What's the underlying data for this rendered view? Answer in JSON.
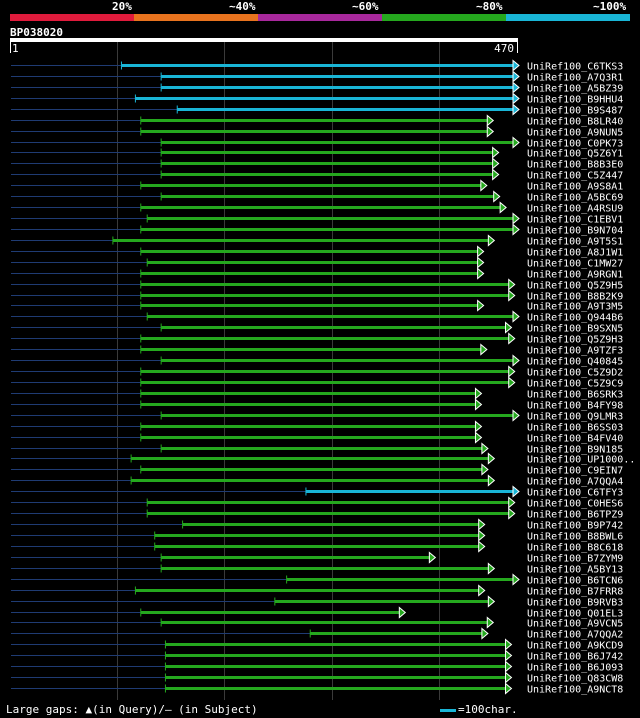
{
  "legend": {
    "labels": [
      "20%",
      "~40%",
      "~60%",
      "~80%",
      "~100%"
    ],
    "colors": [
      "#e01b3c",
      "#e8731e",
      "#a8289c",
      "#25a81e",
      "#19b5d6"
    ]
  },
  "query_id": "BP038020",
  "footer": {
    "gaps_text": "Large gaps: ▲(in Query)/— (in Subject)",
    "scale_text": "=100char."
  },
  "chart_data": {
    "type": "alignment",
    "title": "BP038020",
    "query_length": 470,
    "ruler_start_label": "1",
    "ruler_end_label": "470",
    "grid_positions": [
      100,
      200,
      300,
      400
    ],
    "hits": [
      {
        "name": "UniRef100_C6TKS3",
        "start": 104,
        "end": 470,
        "identity": "~100%"
      },
      {
        "name": "UniRef100_A7Q3R1",
        "start": 141,
        "end": 470,
        "identity": "~100%"
      },
      {
        "name": "UniRef100_A5BZ39",
        "start": 141,
        "end": 470,
        "identity": "~100%"
      },
      {
        "name": "UniRef100_B9HHU4",
        "start": 117,
        "end": 470,
        "identity": "~100%"
      },
      {
        "name": "UniRef100_B9S487",
        "start": 156,
        "end": 470,
        "identity": "~100%"
      },
      {
        "name": "UniRef100_B8LR40",
        "start": 122,
        "end": 446,
        "identity": "~80%"
      },
      {
        "name": "UniRef100_A9NUN5",
        "start": 122,
        "end": 446,
        "identity": "~80%"
      },
      {
        "name": "UniRef100_C0PK73",
        "start": 141,
        "end": 470,
        "identity": "~80%"
      },
      {
        "name": "UniRef100_Q5Z6Y1",
        "start": 141,
        "end": 451,
        "identity": "~80%"
      },
      {
        "name": "UniRef100_B8B3E0",
        "start": 141,
        "end": 451,
        "identity": "~80%"
      },
      {
        "name": "UniRef100_C5Z447",
        "start": 141,
        "end": 451,
        "identity": "~80%"
      },
      {
        "name": "UniRef100_A9S8A1",
        "start": 122,
        "end": 440,
        "identity": "~80%"
      },
      {
        "name": "UniRef100_A5BC69",
        "start": 141,
        "end": 452,
        "identity": "~80%"
      },
      {
        "name": "UniRef100_A4RSU9",
        "start": 122,
        "end": 458,
        "identity": "~80%"
      },
      {
        "name": "UniRef100_C1EBV1",
        "start": 128,
        "end": 470,
        "identity": "~80%"
      },
      {
        "name": "UniRef100_B9N704",
        "start": 122,
        "end": 470,
        "identity": "~80%"
      },
      {
        "name": "UniRef100_A9T5S1",
        "start": 96,
        "end": 447,
        "identity": "~80%"
      },
      {
        "name": "UniRef100_A8J1W1",
        "start": 122,
        "end": 437,
        "identity": "~80%"
      },
      {
        "name": "UniRef100_C1MW27",
        "start": 128,
        "end": 437,
        "identity": "~80%"
      },
      {
        "name": "UniRef100_A9RGN1",
        "start": 122,
        "end": 437,
        "identity": "~80%"
      },
      {
        "name": "UniRef100_Q5Z9H5",
        "start": 122,
        "end": 466,
        "identity": "~80%"
      },
      {
        "name": "UniRef100_B8B2K9",
        "start": 122,
        "end": 466,
        "identity": "~80%"
      },
      {
        "name": "UniRef100_A9T3M5",
        "start": 122,
        "end": 437,
        "identity": "~80%"
      },
      {
        "name": "UniRef100_Q944B6",
        "start": 128,
        "end": 470,
        "identity": "~80%"
      },
      {
        "name": "UniRef100_B9SXN5",
        "start": 141,
        "end": 463,
        "identity": "~80%"
      },
      {
        "name": "UniRef100_Q5Z9H3",
        "start": 122,
        "end": 466,
        "identity": "~80%"
      },
      {
        "name": "UniRef100_A9TZF3",
        "start": 122,
        "end": 440,
        "identity": "~80%"
      },
      {
        "name": "UniRef100_Q40845",
        "start": 141,
        "end": 470,
        "identity": "~80%"
      },
      {
        "name": "UniRef100_C5Z9D2",
        "start": 122,
        "end": 466,
        "identity": "~80%"
      },
      {
        "name": "UniRef100_C5Z9C9",
        "start": 122,
        "end": 466,
        "identity": "~80%"
      },
      {
        "name": "UniRef100_B6SRK3",
        "start": 122,
        "end": 435,
        "identity": "~80%"
      },
      {
        "name": "UniRef100_B4FY98",
        "start": 122,
        "end": 435,
        "identity": "~80%"
      },
      {
        "name": "UniRef100_Q9LMR3",
        "start": 141,
        "end": 470,
        "identity": "~80%"
      },
      {
        "name": "UniRef100_B6SS03",
        "start": 122,
        "end": 435,
        "identity": "~80%"
      },
      {
        "name": "UniRef100_B4FV40",
        "start": 122,
        "end": 435,
        "identity": "~80%"
      },
      {
        "name": "UniRef100_B9N185",
        "start": 141,
        "end": 441,
        "identity": "~80%"
      },
      {
        "name": "UniRef100_UP1000..",
        "start": 113,
        "end": 447,
        "identity": "~80%"
      },
      {
        "name": "UniRef100_C9EIN7",
        "start": 122,
        "end": 441,
        "identity": "~80%"
      },
      {
        "name": "UniRef100_A7QQA4",
        "start": 113,
        "end": 447,
        "identity": "~80%"
      },
      {
        "name": "UniRef100_C6TFY3",
        "start": 276,
        "end": 470,
        "identity": "~100%"
      },
      {
        "name": "UniRef100_C0HES6",
        "start": 128,
        "end": 466,
        "identity": "~80%"
      },
      {
        "name": "UniRef100_B6TPZ9",
        "start": 128,
        "end": 466,
        "identity": "~80%"
      },
      {
        "name": "UniRef100_B9P742",
        "start": 161,
        "end": 438,
        "identity": "~80%"
      },
      {
        "name": "UniRef100_B8BWL6",
        "start": 135,
        "end": 438,
        "identity": "~80%"
      },
      {
        "name": "UniRef100_B8C618",
        "start": 135,
        "end": 438,
        "identity": "~80%"
      },
      {
        "name": "UniRef100_B7ZYM9",
        "start": 141,
        "end": 392,
        "identity": "~80%"
      },
      {
        "name": "UniRef100_A5BY13",
        "start": 141,
        "end": 447,
        "identity": "~80%"
      },
      {
        "name": "UniRef100_B6TCN6",
        "start": 258,
        "end": 470,
        "identity": "~80%"
      },
      {
        "name": "UniRef100_B7FRR8",
        "start": 117,
        "end": 438,
        "identity": "~80%"
      },
      {
        "name": "UniRef100_B9RVB3",
        "start": 247,
        "end": 447,
        "identity": "~80%"
      },
      {
        "name": "UniRef100_Q01EL3",
        "start": 122,
        "end": 364,
        "identity": "~80%"
      },
      {
        "name": "UniRef100_A9VCN5",
        "start": 141,
        "end": 446,
        "identity": "~80%"
      },
      {
        "name": "UniRef100_A7QQA2",
        "start": 280,
        "end": 441,
        "identity": "~80%"
      },
      {
        "name": "UniRef100_A9KCD9",
        "start": 145,
        "end": 463,
        "identity": "~80%"
      },
      {
        "name": "UniRef100_B6J742",
        "start": 145,
        "end": 463,
        "identity": "~80%"
      },
      {
        "name": "UniRef100_B6J093",
        "start": 145,
        "end": 463,
        "identity": "~80%"
      },
      {
        "name": "UniRef100_Q83CW8",
        "start": 145,
        "end": 463,
        "identity": "~80%"
      },
      {
        "name": "UniRef100_A9NCT8",
        "start": 145,
        "end": 463,
        "identity": "~80%"
      }
    ]
  }
}
